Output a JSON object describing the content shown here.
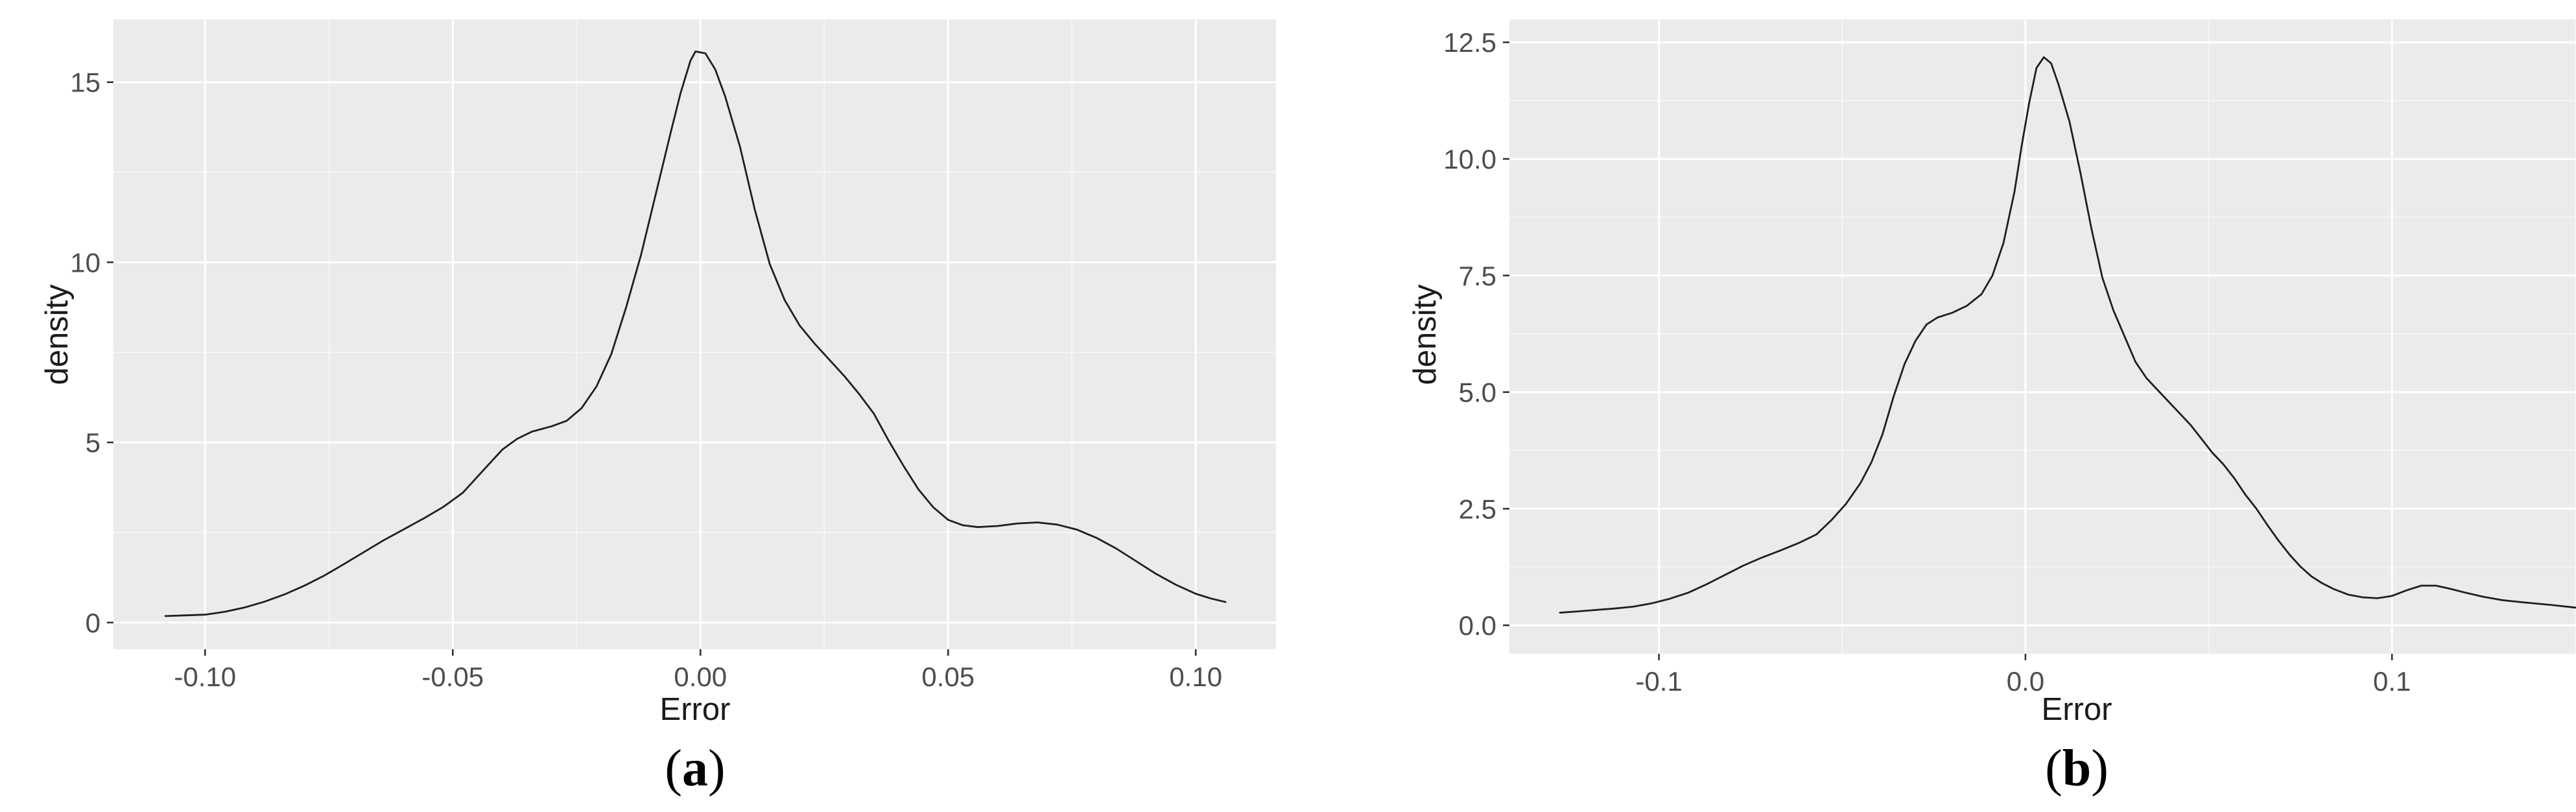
{
  "theme": {
    "page_bg": "#ffffff",
    "panel_bg": "#ebebeb",
    "grid_major": "#ffffff",
    "grid_minor": "#f7f7f7",
    "curve_color": "#1f1f1f",
    "tick_mark_color": "#333333",
    "tick_label_color": "#4d4d4d",
    "axis_title_color": "#1c1c1c",
    "caption_color": "#000000"
  },
  "figure": {
    "captions": [
      {
        "open": "(",
        "letter": "a",
        "close": ")"
      },
      {
        "open": "(",
        "letter": "b",
        "close": ")"
      }
    ]
  },
  "chart_data": [
    {
      "type": "line",
      "subtype": "kernel-density",
      "title": "",
      "xlabel": "Error",
      "ylabel": "density",
      "legend": "none",
      "grid": "major+minor",
      "panel_caption": "(a)",
      "xlim": [
        -0.1185,
        0.1162
      ],
      "ylim": [
        -0.74,
        16.74
      ],
      "x_ticks": [
        {
          "v": -0.1,
          "label": "-0.10"
        },
        {
          "v": -0.05,
          "label": "-0.05"
        },
        {
          "v": 0.0,
          "label": "0.00"
        },
        {
          "v": 0.05,
          "label": "0.05"
        },
        {
          "v": 0.1,
          "label": "0.10"
        }
      ],
      "y_ticks": [
        {
          "v": 0,
          "label": "0"
        },
        {
          "v": 5,
          "label": "5"
        },
        {
          "v": 10,
          "label": "10"
        },
        {
          "v": 15,
          "label": "15"
        }
      ],
      "x_minor": [
        -0.075,
        -0.025,
        0.025,
        0.075
      ],
      "y_minor": [
        2.5,
        7.5,
        12.5
      ],
      "peak": {
        "x": -0.001,
        "density": 15.85
      },
      "points": [
        [
          -0.108,
          0.18
        ],
        [
          -0.104,
          0.2
        ],
        [
          -0.1,
          0.22
        ],
        [
          -0.096,
          0.3
        ],
        [
          -0.092,
          0.42
        ],
        [
          -0.088,
          0.58
        ],
        [
          -0.084,
          0.78
        ],
        [
          -0.08,
          1.02
        ],
        [
          -0.076,
          1.3
        ],
        [
          -0.072,
          1.62
        ],
        [
          -0.068,
          1.95
        ],
        [
          -0.064,
          2.28
        ],
        [
          -0.06,
          2.58
        ],
        [
          -0.056,
          2.88
        ],
        [
          -0.052,
          3.2
        ],
        [
          -0.048,
          3.6
        ],
        [
          -0.044,
          4.2
        ],
        [
          -0.04,
          4.8
        ],
        [
          -0.037,
          5.1
        ],
        [
          -0.034,
          5.3
        ],
        [
          -0.03,
          5.45
        ],
        [
          -0.027,
          5.6
        ],
        [
          -0.024,
          5.95
        ],
        [
          -0.021,
          6.55
        ],
        [
          -0.018,
          7.45
        ],
        [
          -0.015,
          8.75
        ],
        [
          -0.012,
          10.2
        ],
        [
          -0.009,
          11.9
        ],
        [
          -0.006,
          13.6
        ],
        [
          -0.004,
          14.7
        ],
        [
          -0.002,
          15.6
        ],
        [
          -0.001,
          15.85
        ],
        [
          0.001,
          15.8
        ],
        [
          0.003,
          15.35
        ],
        [
          0.005,
          14.6
        ],
        [
          0.008,
          13.2
        ],
        [
          0.011,
          11.45
        ],
        [
          0.014,
          9.95
        ],
        [
          0.017,
          8.95
        ],
        [
          0.02,
          8.25
        ],
        [
          0.023,
          7.75
        ],
        [
          0.026,
          7.3
        ],
        [
          0.029,
          6.85
        ],
        [
          0.032,
          6.35
        ],
        [
          0.035,
          5.8
        ],
        [
          0.038,
          5.05
        ],
        [
          0.041,
          4.35
        ],
        [
          0.044,
          3.7
        ],
        [
          0.047,
          3.2
        ],
        [
          0.05,
          2.85
        ],
        [
          0.053,
          2.7
        ],
        [
          0.056,
          2.65
        ],
        [
          0.06,
          2.68
        ],
        [
          0.064,
          2.75
        ],
        [
          0.068,
          2.78
        ],
        [
          0.072,
          2.72
        ],
        [
          0.076,
          2.58
        ],
        [
          0.08,
          2.35
        ],
        [
          0.084,
          2.05
        ],
        [
          0.088,
          1.7
        ],
        [
          0.092,
          1.35
        ],
        [
          0.096,
          1.05
        ],
        [
          0.1,
          0.8
        ],
        [
          0.103,
          0.67
        ],
        [
          0.106,
          0.57
        ]
      ]
    },
    {
      "type": "line",
      "subtype": "kernel-density",
      "title": "",
      "xlabel": "Error",
      "ylabel": "density",
      "legend": "none",
      "grid": "major+minor",
      "panel_caption": "(b)",
      "xlim": [
        -0.1408,
        0.1686
      ],
      "ylim": [
        -0.61,
        12.99
      ],
      "x_ticks": [
        {
          "v": -0.1,
          "label": "-0.1"
        },
        {
          "v": 0.0,
          "label": "0.0"
        },
        {
          "v": 0.1,
          "label": "0.1"
        }
      ],
      "y_ticks": [
        {
          "v": 0.0,
          "label": "0.0"
        },
        {
          "v": 2.5,
          "label": "2.5"
        },
        {
          "v": 5.0,
          "label": "5.0"
        },
        {
          "v": 7.5,
          "label": "7.5"
        },
        {
          "v": 10.0,
          "label": "10.0"
        },
        {
          "v": 12.5,
          "label": "12.5"
        }
      ],
      "x_minor": [
        -0.05,
        0.05,
        0.15
      ],
      "y_minor": [
        1.25,
        3.75,
        6.25,
        8.75,
        11.25
      ],
      "peak": {
        "x": 0.004,
        "density": 12.18
      },
      "points": [
        [
          -0.127,
          0.27
        ],
        [
          -0.122,
          0.3
        ],
        [
          -0.117,
          0.33
        ],
        [
          -0.112,
          0.36
        ],
        [
          -0.107,
          0.4
        ],
        [
          -0.102,
          0.47
        ],
        [
          -0.097,
          0.57
        ],
        [
          -0.092,
          0.7
        ],
        [
          -0.087,
          0.88
        ],
        [
          -0.082,
          1.08
        ],
        [
          -0.077,
          1.28
        ],
        [
          -0.072,
          1.45
        ],
        [
          -0.067,
          1.6
        ],
        [
          -0.062,
          1.76
        ],
        [
          -0.057,
          1.95
        ],
        [
          -0.053,
          2.25
        ],
        [
          -0.049,
          2.6
        ],
        [
          -0.045,
          3.05
        ],
        [
          -0.042,
          3.5
        ],
        [
          -0.039,
          4.1
        ],
        [
          -0.036,
          4.9
        ],
        [
          -0.033,
          5.6
        ],
        [
          -0.03,
          6.1
        ],
        [
          -0.027,
          6.45
        ],
        [
          -0.024,
          6.6
        ],
        [
          -0.02,
          6.7
        ],
        [
          -0.016,
          6.85
        ],
        [
          -0.012,
          7.1
        ],
        [
          -0.009,
          7.5
        ],
        [
          -0.006,
          8.2
        ],
        [
          -0.003,
          9.3
        ],
        [
          -0.001,
          10.3
        ],
        [
          0.001,
          11.2
        ],
        [
          0.003,
          11.95
        ],
        [
          0.005,
          12.18
        ],
        [
          0.007,
          12.05
        ],
        [
          0.009,
          11.6
        ],
        [
          0.012,
          10.8
        ],
        [
          0.015,
          9.7
        ],
        [
          0.018,
          8.5
        ],
        [
          0.021,
          7.45
        ],
        [
          0.024,
          6.75
        ],
        [
          0.027,
          6.2
        ],
        [
          0.03,
          5.65
        ],
        [
          0.033,
          5.3
        ],
        [
          0.036,
          5.05
        ],
        [
          0.039,
          4.8
        ],
        [
          0.042,
          4.55
        ],
        [
          0.045,
          4.3
        ],
        [
          0.048,
          4.0
        ],
        [
          0.051,
          3.7
        ],
        [
          0.054,
          3.45
        ],
        [
          0.057,
          3.15
        ],
        [
          0.06,
          2.8
        ],
        [
          0.063,
          2.5
        ],
        [
          0.066,
          2.15
        ],
        [
          0.069,
          1.82
        ],
        [
          0.072,
          1.52
        ],
        [
          0.075,
          1.26
        ],
        [
          0.078,
          1.05
        ],
        [
          0.081,
          0.9
        ],
        [
          0.084,
          0.78
        ],
        [
          0.088,
          0.66
        ],
        [
          0.092,
          0.6
        ],
        [
          0.096,
          0.58
        ],
        [
          0.1,
          0.63
        ],
        [
          0.104,
          0.75
        ],
        [
          0.108,
          0.85
        ],
        [
          0.112,
          0.85
        ],
        [
          0.116,
          0.78
        ],
        [
          0.12,
          0.7
        ],
        [
          0.125,
          0.61
        ],
        [
          0.13,
          0.54
        ],
        [
          0.136,
          0.49
        ],
        [
          0.143,
          0.44
        ],
        [
          0.15,
          0.38
        ],
        [
          0.155,
          0.34
        ]
      ]
    }
  ]
}
